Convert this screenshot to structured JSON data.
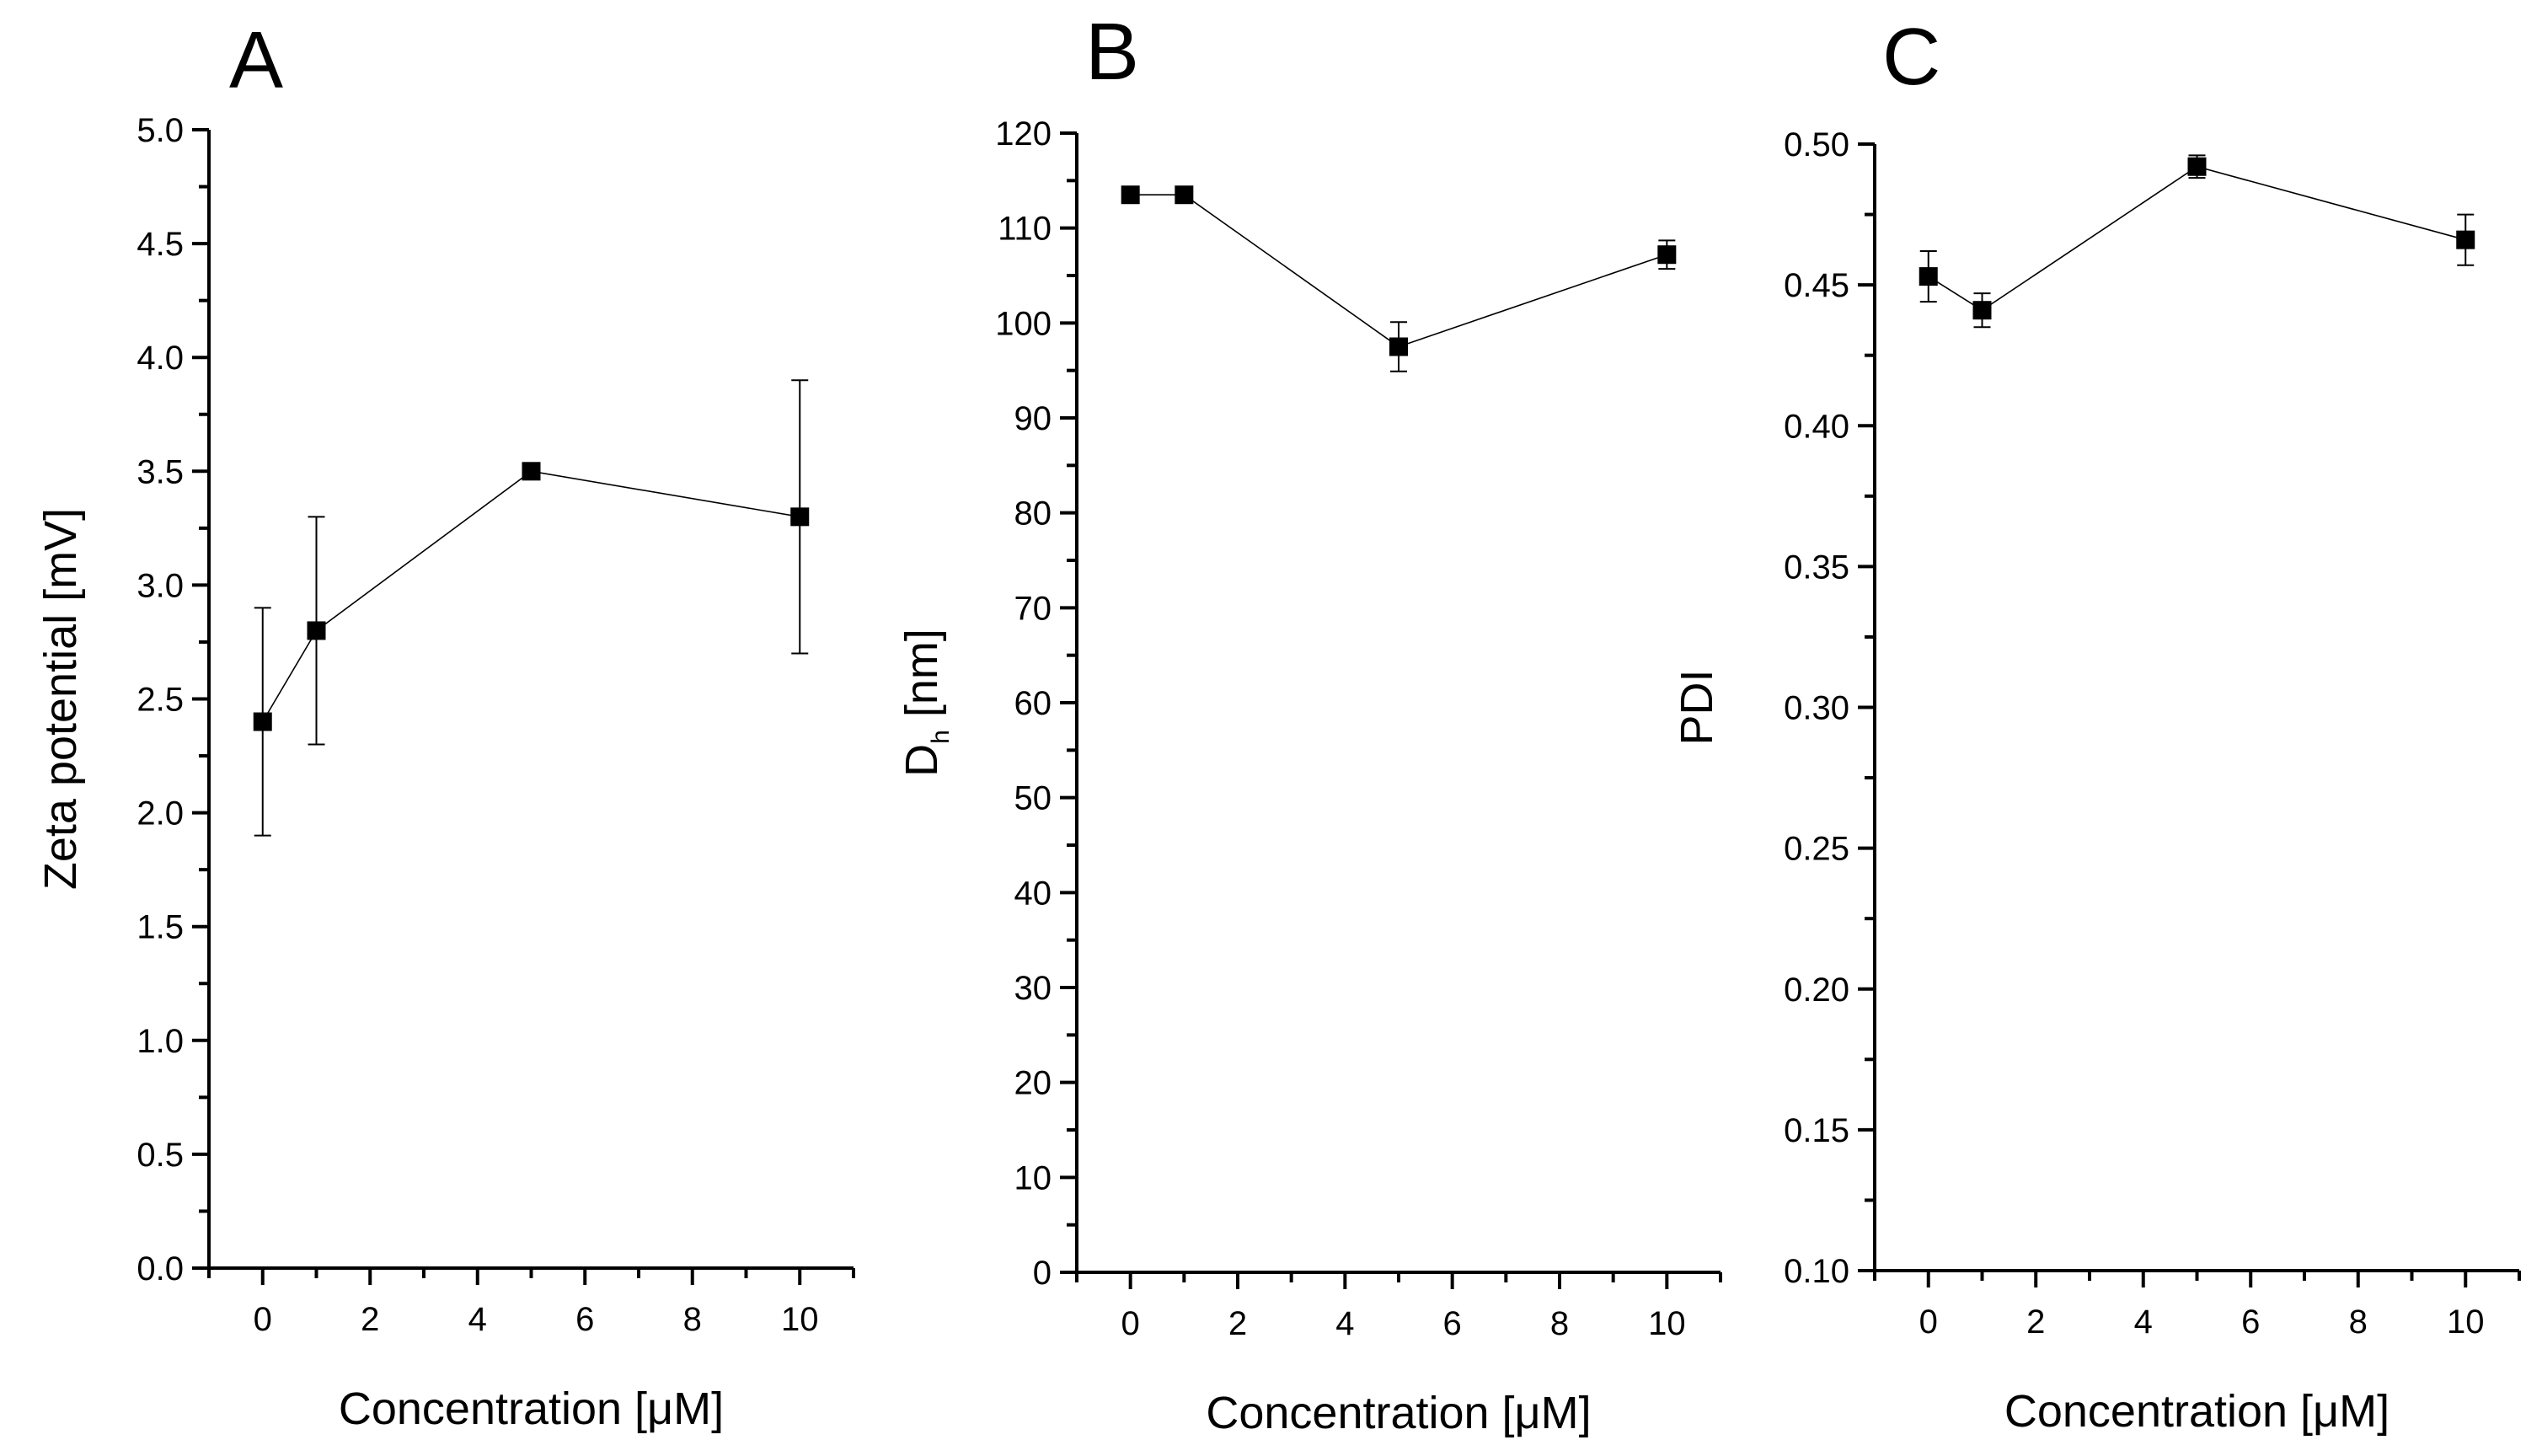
{
  "chart_data": [
    {
      "type": "line",
      "panel": "A",
      "title": "",
      "xlabel": "Concentration [μM]",
      "ylabel": "Zeta potential [mV]",
      "xlim": [
        -1,
        11
      ],
      "ylim": [
        0,
        5
      ],
      "x_ticks": [
        0,
        2,
        4,
        6,
        8,
        10
      ],
      "x_tick_labels": [
        "0",
        "2",
        "4",
        "6",
        "8",
        "10"
      ],
      "y_ticks": [
        0.0,
        0.5,
        1.0,
        1.5,
        2.0,
        2.5,
        3.0,
        3.5,
        4.0,
        4.5,
        5.0
      ],
      "y_tick_labels": [
        "0.0",
        "0.5",
        "1.0",
        "1.5",
        "2.0",
        "2.5",
        "3.0",
        "3.5",
        "4.0",
        "4.5",
        "5.0"
      ],
      "grid": false,
      "series": [
        {
          "name": "Zeta potential",
          "x": [
            0,
            1,
            5,
            10
          ],
          "values": [
            2.4,
            2.8,
            3.5,
            3.3
          ],
          "error": [
            0.5,
            0.5,
            0.0,
            0.6
          ]
        }
      ]
    },
    {
      "type": "line",
      "panel": "B",
      "title": "",
      "xlabel": "Concentration [μM]",
      "ylabel": "D",
      "ylabel_sub": "h",
      "ylabel_unit": " [nm]",
      "xlim": [
        -1,
        11
      ],
      "ylim": [
        0,
        120
      ],
      "x_ticks": [
        0,
        2,
        4,
        6,
        8,
        10
      ],
      "x_tick_labels": [
        "0",
        "2",
        "4",
        "6",
        "8",
        "10"
      ],
      "y_ticks": [
        0,
        10,
        20,
        30,
        40,
        50,
        60,
        70,
        80,
        90,
        100,
        110,
        120
      ],
      "y_tick_labels": [
        "0",
        "10",
        "20",
        "30",
        "40",
        "50",
        "60",
        "70",
        "80",
        "90",
        "100",
        "110",
        "120"
      ],
      "grid": false,
      "series": [
        {
          "name": "Dh",
          "x": [
            0,
            1,
            5,
            10
          ],
          "values": [
            113.5,
            113.5,
            97.5,
            107.2
          ],
          "error": [
            0.6,
            0.6,
            2.6,
            1.5
          ]
        }
      ]
    },
    {
      "type": "line",
      "panel": "C",
      "title": "",
      "xlabel": "Concentration [μM]",
      "ylabel": "PDI",
      "xlim": [
        -1,
        11
      ],
      "ylim": [
        0.1,
        0.5
      ],
      "x_ticks": [
        0,
        2,
        4,
        6,
        8,
        10
      ],
      "x_tick_labels": [
        "0",
        "2",
        "4",
        "6",
        "8",
        "10"
      ],
      "y_ticks": [
        0.1,
        0.15,
        0.2,
        0.25,
        0.3,
        0.35,
        0.4,
        0.45,
        0.5
      ],
      "y_tick_labels": [
        "0.10",
        "0.15",
        "0.20",
        "0.25",
        "0.30",
        "0.35",
        "0.40",
        "0.45",
        "0.50"
      ],
      "grid": false,
      "series": [
        {
          "name": "PDI",
          "x": [
            0,
            1,
            5,
            10
          ],
          "values": [
            0.453,
            0.441,
            0.492,
            0.466
          ],
          "error": [
            0.009,
            0.006,
            0.004,
            0.009
          ]
        }
      ]
    }
  ]
}
